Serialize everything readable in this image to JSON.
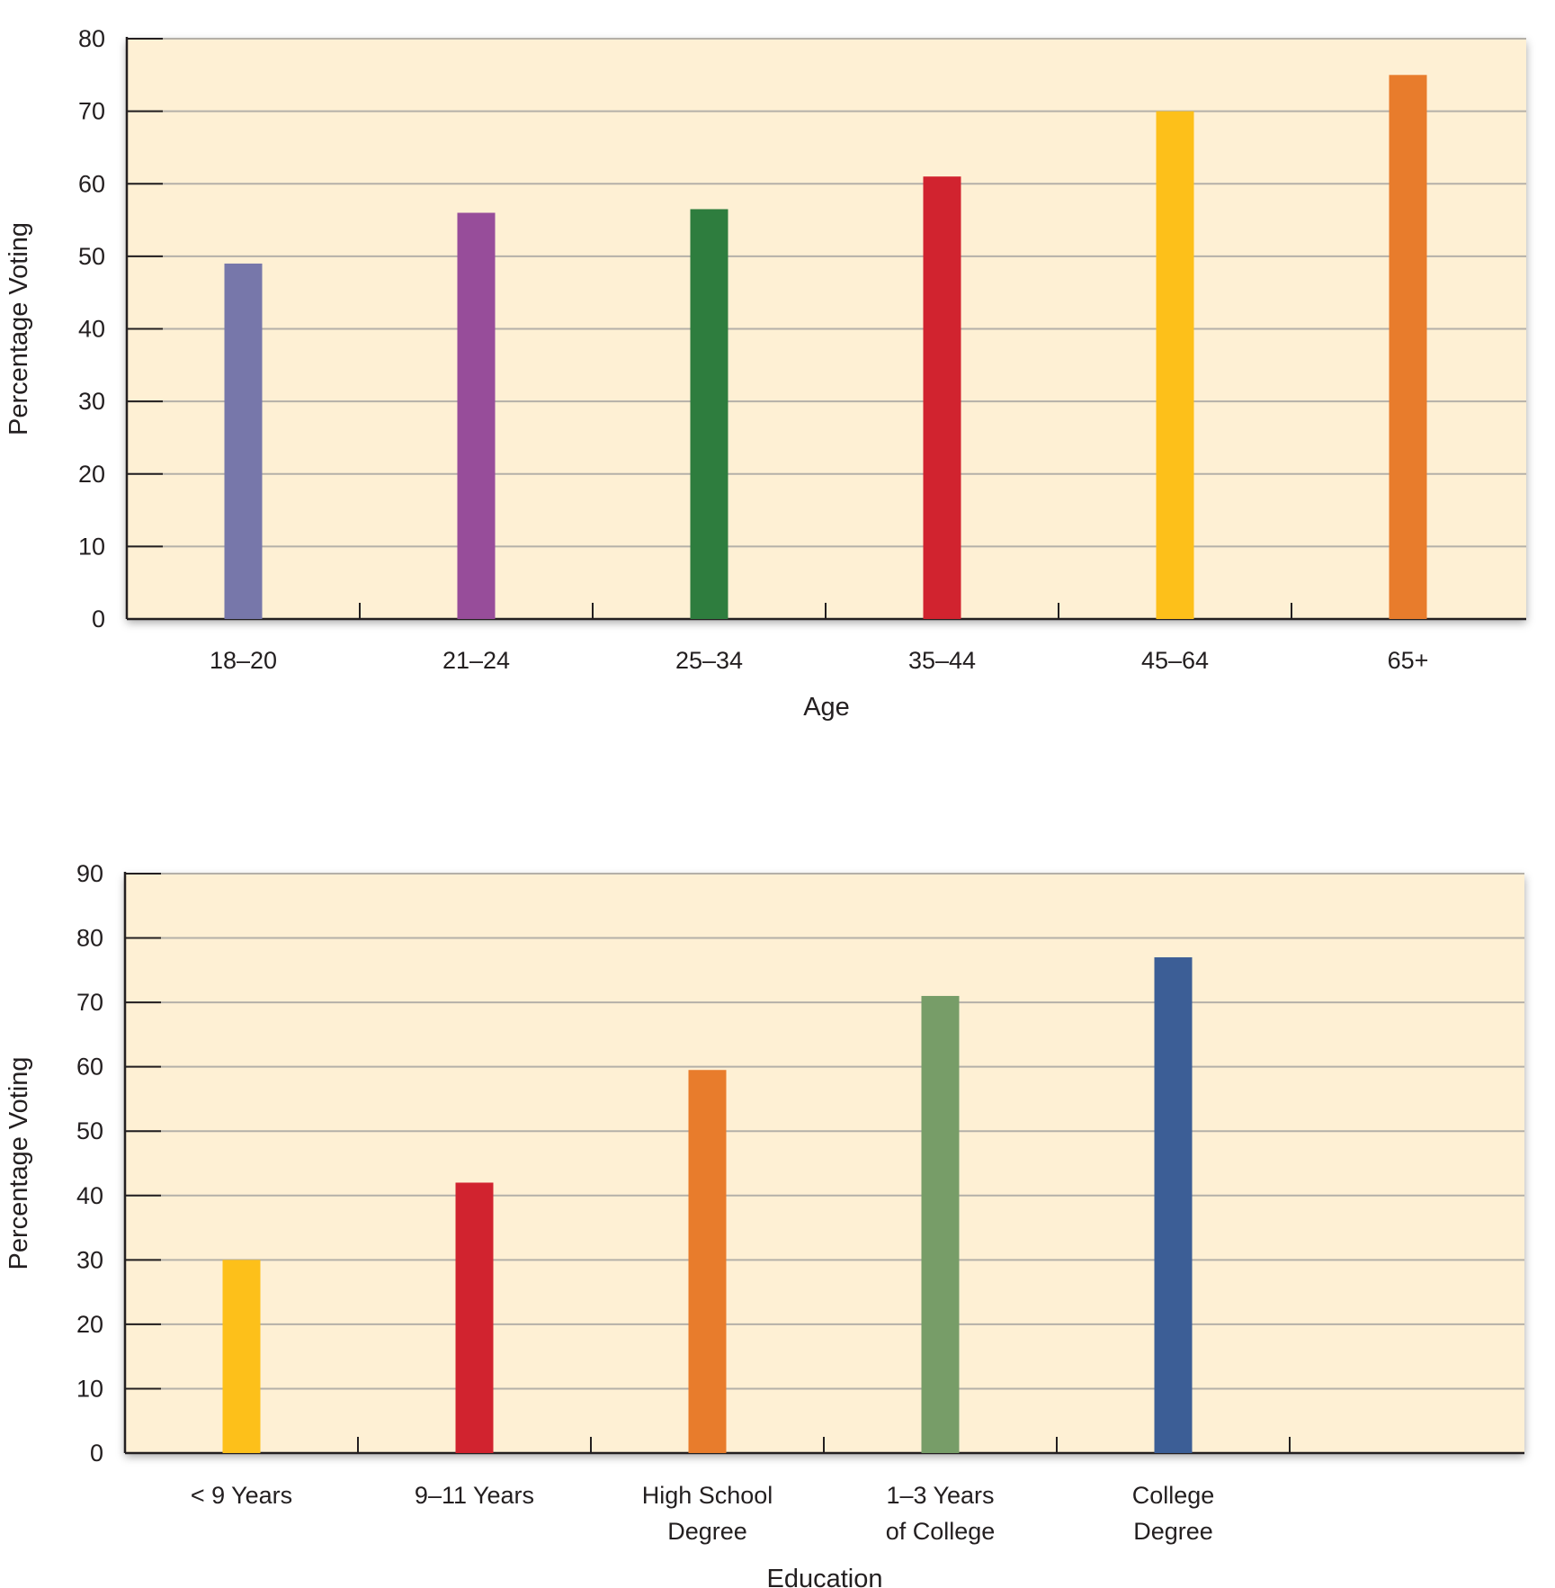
{
  "chart_data": [
    {
      "type": "bar",
      "title": "",
      "xlabel": "Age",
      "ylabel": "Percentage Voting",
      "ylim": [
        0,
        80
      ],
      "yticks": [
        0,
        10,
        20,
        30,
        40,
        50,
        60,
        70,
        80
      ],
      "ytick_labels": [
        "0",
        "10",
        "20",
        "30",
        "40",
        "50",
        "60",
        "70",
        "80"
      ],
      "grid": true,
      "categories": [
        "18–20",
        "21–24",
        "25–34",
        "35–44",
        "45–64",
        "65+"
      ],
      "category_labels": [
        [
          "18–20"
        ],
        [
          "21–24"
        ],
        [
          "25–34"
        ],
        [
          "35–44"
        ],
        [
          "45–64"
        ],
        [
          "65+"
        ]
      ],
      "values": [
        49,
        56,
        56.5,
        61,
        70,
        75
      ],
      "colors": [
        "#7777aa",
        "#974d9a",
        "#2e7d3e",
        "#d1232f",
        "#fdc01a",
        "#e87c2c"
      ],
      "plot_background": "#fef0d4"
    },
    {
      "type": "bar",
      "title": "",
      "xlabel": "Education",
      "ylabel": "Percentage Voting",
      "ylim": [
        0,
        90
      ],
      "yticks": [
        0,
        10,
        20,
        30,
        40,
        50,
        60,
        70,
        80,
        90
      ],
      "ytick_labels": [
        "0",
        "10",
        "20",
        "30",
        "40",
        "50",
        "60",
        "70",
        "80",
        "90"
      ],
      "grid": true,
      "categories": [
        "< 9 Years",
        "9–11 Years",
        "High School Degree",
        "1–3 Years of College",
        "College Degree"
      ],
      "category_labels": [
        [
          "< 9 Years"
        ],
        [
          "9–11 Years"
        ],
        [
          "High School",
          "Degree"
        ],
        [
          "1–3 Years",
          "of College"
        ],
        [
          "College",
          "Degree"
        ]
      ],
      "values": [
        30,
        42,
        59.5,
        71,
        77
      ],
      "colors": [
        "#fdc01a",
        "#d1232f",
        "#e87c2c",
        "#779d68",
        "#3c5e96"
      ],
      "plot_background": "#fef0d4"
    }
  ]
}
